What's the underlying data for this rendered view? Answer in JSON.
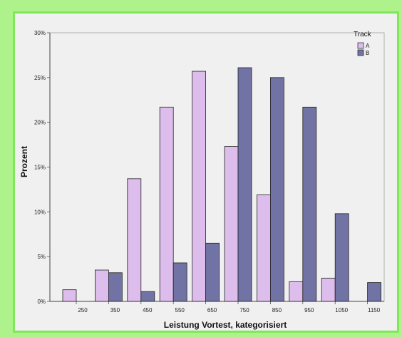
{
  "chart_data": {
    "type": "bar",
    "xlabel": "Leistung Vortest, kategorisiert",
    "ylabel": "Prozent",
    "categories": [
      "250",
      "350",
      "450",
      "550",
      "650",
      "750",
      "850",
      "950",
      "1050",
      "1150"
    ],
    "y_ticks": [
      "0%",
      "5%",
      "10%",
      "15%",
      "20%",
      "25%",
      "30%"
    ],
    "ylim": [
      0,
      30
    ],
    "grid": false,
    "legend": {
      "title": "Track",
      "position": "top-right"
    },
    "series": [
      {
        "name": "A",
        "color": "#dcbdec",
        "values": [
          1.3,
          3.5,
          13.7,
          21.7,
          25.7,
          17.3,
          11.9,
          2.2,
          2.6,
          0
        ]
      },
      {
        "name": "B",
        "color": "#7073a3",
        "values": [
          0,
          3.2,
          1.1,
          4.3,
          6.5,
          26.1,
          25.0,
          21.7,
          9.8,
          2.1
        ]
      }
    ]
  }
}
